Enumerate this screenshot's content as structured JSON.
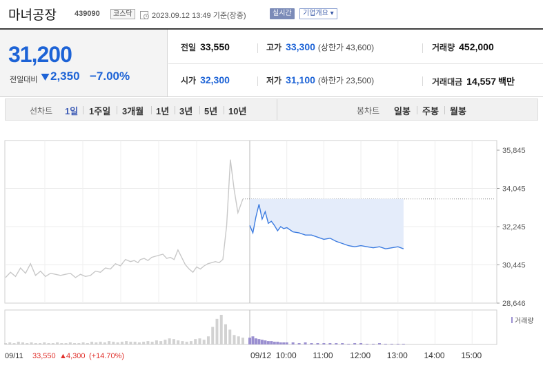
{
  "header": {
    "stock_name": "마녀공장",
    "stock_code": "439090",
    "market": "코스닥",
    "datetime": "2023.09.12 13:49 기준(장중)",
    "realtime_label": "실시간",
    "company_overview_label": "기업개요 ▾"
  },
  "summary": {
    "current_price": "31,200",
    "change_label": "전일대비",
    "change_amount": "2,350",
    "change_rate": "−7.00%",
    "prev_close": {
      "label": "전일",
      "value": "33,550"
    },
    "high": {
      "label": "고가",
      "value": "33,300",
      "limit": "(상한가 43,600)"
    },
    "volume": {
      "label": "거래량",
      "value": "452,000"
    },
    "open": {
      "label": "시가",
      "value": "32,300"
    },
    "low": {
      "label": "저가",
      "value": "31,100",
      "limit": "(하한가 23,500)"
    },
    "amount": {
      "label": "거래대금",
      "value": "14,557",
      "unit": "백만"
    }
  },
  "tabs": {
    "line_label": "선차트",
    "line_tabs": [
      "1일",
      "1주일",
      "3개월",
      "1년",
      "3년",
      "5년",
      "10년"
    ],
    "candle_label": "봉차트",
    "candle_tabs": [
      "일봉",
      "주봉",
      "월봉"
    ],
    "active_line_tab": "1일"
  },
  "colors": {
    "price_down": "#1d63d6",
    "price_up": "#e0312c",
    "today_line": "#3b7be0",
    "prev_day_line": "#c8c8c8",
    "area_fill": "#e4ecfa",
    "volume_today": "#9a8fd0",
    "volume_prev": "#d2d2d2"
  },
  "chart_data": {
    "type": "line",
    "y_ticks": [
      "35,845",
      "34,045",
      "32,245",
      "30,445",
      "28,646"
    ],
    "y_range": [
      28646,
      35845
    ],
    "prev_close_value": 33550,
    "x_labels": [
      "09/11",
      "09/12",
      "10:00",
      "11:00",
      "12:00",
      "13:00",
      "14:00",
      "15:00"
    ],
    "volume_label": "거래량",
    "footer": {
      "date": "09/11",
      "close": "33,550",
      "arrow": "▲",
      "change": "4,300",
      "rate": "(+14.70%)"
    },
    "series": [
      {
        "period": "09/11",
        "x_minutes": [
          0,
          8,
          16,
          24,
          32,
          40,
          48,
          56,
          64,
          72,
          80,
          88,
          96,
          104,
          112,
          120,
          128,
          136,
          144,
          152,
          160,
          168,
          176,
          184,
          192,
          200,
          206,
          212,
          216,
          222,
          228,
          234,
          240,
          246,
          252,
          258,
          264,
          270,
          276,
          282,
          288,
          294,
          300,
          306,
          312,
          318,
          324,
          330,
          336,
          342,
          348,
          354,
          360,
          366,
          372,
          380
        ],
        "values": [
          29850,
          30100,
          29900,
          30300,
          30050,
          30500,
          29950,
          30150,
          29900,
          30050,
          30000,
          29950,
          30000,
          30050,
          29850,
          30000,
          29900,
          29950,
          30150,
          30100,
          30300,
          30250,
          30500,
          30400,
          30700,
          30600,
          30650,
          30550,
          30700,
          30750,
          30650,
          30800,
          30850,
          30900,
          30950,
          30750,
          30800,
          30700,
          31150,
          30800,
          30450,
          30250,
          30100,
          30350,
          30250,
          30400,
          30500,
          30550,
          30600,
          30550,
          30700,
          32300,
          35400,
          34000,
          32900,
          33550
        ]
      },
      {
        "period": "09/12",
        "x_minutes": [
          0,
          5,
          10,
          15,
          20,
          25,
          30,
          35,
          40,
          45,
          50,
          55,
          60,
          70,
          80,
          90,
          100,
          110,
          120,
          130,
          140,
          150,
          160,
          170,
          180,
          190,
          200,
          210,
          220,
          230,
          240,
          249
        ],
        "values": [
          32300,
          31950,
          32700,
          33300,
          32600,
          32950,
          32400,
          32500,
          32300,
          32050,
          32250,
          32150,
          32200,
          32000,
          31950,
          31850,
          31850,
          31750,
          31650,
          31700,
          31550,
          31450,
          31350,
          31300,
          31350,
          31300,
          31250,
          31300,
          31200,
          31250,
          31300,
          31200
        ]
      }
    ],
    "volume_prev": [
      2,
      3,
      2,
      4,
      3,
      2,
      3,
      2,
      2,
      3,
      2,
      2,
      3,
      2,
      2,
      3,
      2,
      2,
      3,
      2,
      4,
      3,
      4,
      3,
      5,
      4,
      3,
      4,
      5,
      4,
      4,
      3,
      4,
      5,
      4,
      6,
      5,
      7,
      9,
      8,
      6,
      5,
      4,
      5,
      8,
      9,
      7,
      12,
      26,
      38,
      44,
      30,
      22,
      14,
      12,
      10
    ],
    "volume_today": [
      10,
      12,
      9,
      8,
      7,
      6,
      5,
      5,
      4,
      4,
      3,
      3,
      3,
      3,
      2,
      3,
      2,
      2,
      2,
      2,
      2,
      2,
      1,
      2,
      2,
      1,
      1,
      2,
      1,
      1,
      1,
      1
    ]
  }
}
